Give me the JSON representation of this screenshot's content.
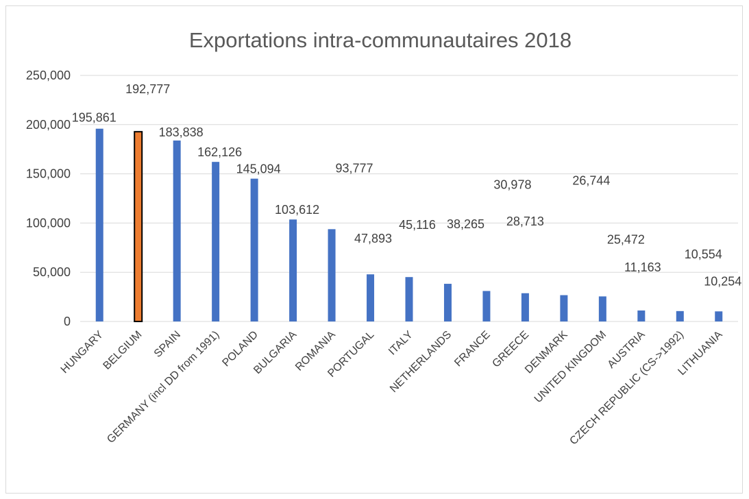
{
  "chart_data": {
    "type": "bar",
    "title": "Exportations intra-communautaires 2018",
    "xlabel": "",
    "ylabel": "",
    "ylim": [
      0,
      250000
    ],
    "yticks": [
      0,
      50000,
      100000,
      150000,
      200000,
      250000
    ],
    "ytick_labels": [
      "0",
      "50,000",
      "100,000",
      "150,000",
      "200,000",
      "250,000"
    ],
    "grid": true,
    "legend": "none",
    "categories": [
      "HUNGARY",
      "BELGIUM",
      "SPAIN",
      "GERMANY (incl DD from 1991)",
      "POLAND",
      "BULGARIA",
      "ROMANIA",
      "PORTUGAL",
      "ITALY",
      "NETHERLANDS",
      "FRANCE",
      "GREECE",
      "DENMARK",
      "UNITED KINGDOM",
      "AUSTRIA",
      "CZECH REPUBLIC (CS->1992)",
      "LITHUANIA"
    ],
    "values": [
      195861,
      192777,
      183838,
      162126,
      145094,
      103612,
      93777,
      47893,
      45116,
      38265,
      30978,
      28713,
      26744,
      25472,
      11163,
      10554,
      10254
    ],
    "data_labels": [
      "195,861",
      "192,777",
      "183,838",
      "162,126",
      "145,094",
      "103,612",
      "93,777",
      "47,893",
      "45,116",
      "38,265",
      "30,978",
      "28,713",
      "26,744",
      "25,472",
      "11,163",
      "10,554",
      "10,254"
    ],
    "highlight_index": 1,
    "colors": {
      "bar": "#4472c4",
      "highlight": "#ed7d31",
      "highlight_border": "#000000",
      "grid": "#d9d9d9",
      "text": "#404040",
      "title": "#595959"
    }
  }
}
